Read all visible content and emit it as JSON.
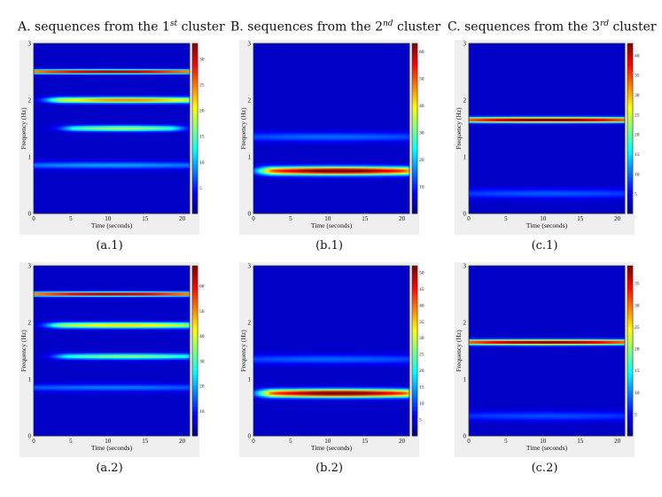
{
  "column_titles": [
    {
      "prefix": "A. sequences from the 1",
      "sup": "st",
      "suffix": " cluster"
    },
    {
      "prefix": "B. sequences from the 2",
      "sup": "nd",
      "suffix": " cluster"
    },
    {
      "prefix": "C. sequences from the 3",
      "sup": "rd",
      "suffix": " cluster"
    }
  ],
  "colormap": [
    "#00007f",
    "#0000ff",
    "#007fff",
    "#00ffff",
    "#7fff7f",
    "#ffff00",
    "#ff7f00",
    "#ff0000",
    "#7f0000"
  ],
  "chart_data": [
    {
      "type": "heatmap",
      "panel_label": "(a.1)",
      "xlabel": "Time (seconds)",
      "ylabel": "Frequency (Hz)",
      "xlim": [
        0,
        21
      ],
      "ylim": [
        0,
        3
      ],
      "xticks": [
        "0",
        "5",
        "10",
        "15",
        "20"
      ],
      "yticks": [
        "0",
        "1",
        "2",
        "3"
      ],
      "colorbar": {
        "min": 0,
        "max": 33,
        "ticks": [
          5,
          10,
          15,
          20,
          25,
          30
        ]
      },
      "bands": [
        {
          "frequency": 2.5,
          "peak": 32,
          "width": 0.035,
          "x_start": 0,
          "x_end": 21
        },
        {
          "frequency": 2.0,
          "peak": 23,
          "width": 0.05,
          "x_start": 4,
          "x_end": 21
        },
        {
          "frequency": 1.5,
          "peak": 16,
          "width": 0.05,
          "x_start": 6,
          "x_end": 18
        },
        {
          "frequency": 0.85,
          "peak": 7,
          "width": 0.06,
          "x_start": 0,
          "x_end": 21
        }
      ]
    },
    {
      "type": "heatmap",
      "panel_label": "(b.1)",
      "xlabel": "Time (seconds)",
      "ylabel": "Frequency (Hz)",
      "xlim": [
        0,
        21
      ],
      "ylim": [
        0,
        3
      ],
      "xticks": [
        "0",
        "5",
        "10",
        "15",
        "20"
      ],
      "yticks": [
        "0",
        "1",
        "2",
        "3"
      ],
      "colorbar": {
        "min": 0,
        "max": 63,
        "ticks": [
          10,
          20,
          30,
          40,
          50,
          60
        ]
      },
      "bands": [
        {
          "frequency": 0.75,
          "peak": 62,
          "width": 0.07,
          "x_start": 3,
          "x_end": 20
        },
        {
          "frequency": 1.35,
          "peak": 10,
          "width": 0.08,
          "x_start": 0,
          "x_end": 21
        }
      ]
    },
    {
      "type": "heatmap",
      "panel_label": "(c.1)",
      "xlabel": "Time (seconds)",
      "ylabel": "Frequency (Hz)",
      "xlim": [
        0,
        21
      ],
      "ylim": [
        0,
        3
      ],
      "xticks": [
        "0",
        "5",
        "10",
        "15",
        "20"
      ],
      "yticks": [
        "0",
        "1",
        "2",
        "3"
      ],
      "colorbar": {
        "min": 0,
        "max": 43,
        "ticks": [
          5,
          10,
          15,
          20,
          25,
          30,
          35,
          40
        ]
      },
      "bands": [
        {
          "frequency": 1.65,
          "peak": 42,
          "width": 0.045,
          "x_start": 0,
          "x_end": 21
        },
        {
          "frequency": 0.35,
          "peak": 6,
          "width": 0.08,
          "x_start": 0,
          "x_end": 21
        }
      ]
    },
    {
      "type": "heatmap",
      "panel_label": "(a.2)",
      "xlabel": "Time (seconds)",
      "ylabel": "Frequency (Hz)",
      "xlim": [
        0,
        21
      ],
      "ylim": [
        0,
        3
      ],
      "xticks": [
        "0",
        "5",
        "10",
        "15",
        "20"
      ],
      "yticks": [
        "0",
        "1",
        "2",
        "3"
      ],
      "colorbar": {
        "min": 0,
        "max": 68,
        "ticks": [
          10,
          20,
          30,
          40,
          50,
          60
        ]
      },
      "bands": [
        {
          "frequency": 2.5,
          "peak": 66,
          "width": 0.035,
          "x_start": 0,
          "x_end": 21
        },
        {
          "frequency": 1.95,
          "peak": 42,
          "width": 0.05,
          "x_start": 4,
          "x_end": 21
        },
        {
          "frequency": 1.4,
          "peak": 30,
          "width": 0.05,
          "x_start": 5,
          "x_end": 20
        },
        {
          "frequency": 0.85,
          "peak": 12,
          "width": 0.06,
          "x_start": 0,
          "x_end": 21
        }
      ]
    },
    {
      "type": "heatmap",
      "panel_label": "(b.2)",
      "xlabel": "Time (seconds)",
      "ylabel": "Frequency (Hz)",
      "xlim": [
        0,
        21
      ],
      "ylim": [
        0,
        3
      ],
      "xticks": [
        "0",
        "5",
        "10",
        "15",
        "20"
      ],
      "yticks": [
        "0",
        "1",
        "2",
        "3"
      ],
      "colorbar": {
        "min": 0,
        "max": 52,
        "ticks": [
          5,
          10,
          15,
          20,
          25,
          30,
          35,
          40,
          45,
          50
        ]
      },
      "bands": [
        {
          "frequency": 0.75,
          "peak": 51,
          "width": 0.07,
          "x_start": 3,
          "x_end": 20
        },
        {
          "frequency": 1.35,
          "peak": 8,
          "width": 0.08,
          "x_start": 0,
          "x_end": 21
        }
      ]
    },
    {
      "type": "heatmap",
      "panel_label": "(c.2)",
      "xlabel": "Time (seconds)",
      "ylabel": "Frequency (Hz)",
      "xlim": [
        0,
        21
      ],
      "ylim": [
        0,
        3
      ],
      "xticks": [
        "0",
        "5",
        "10",
        "15",
        "20"
      ],
      "yticks": [
        "0",
        "1",
        "2",
        "3"
      ],
      "colorbar": {
        "min": 0,
        "max": 39,
        "ticks": [
          5,
          10,
          15,
          20,
          25,
          30,
          35
        ]
      },
      "bands": [
        {
          "frequency": 1.65,
          "peak": 38,
          "width": 0.045,
          "x_start": 0,
          "x_end": 21
        },
        {
          "frequency": 0.35,
          "peak": 5,
          "width": 0.08,
          "x_start": 0,
          "x_end": 21
        }
      ]
    }
  ]
}
